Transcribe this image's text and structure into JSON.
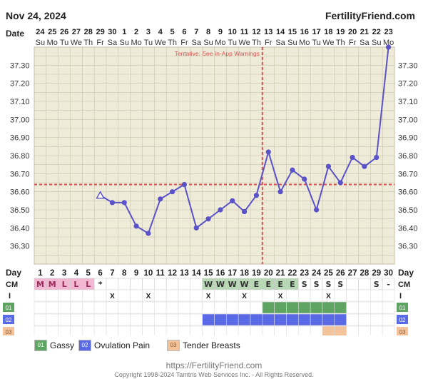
{
  "header": {
    "date": "Nov 24, 2024",
    "site": "FertilityFriend.com"
  },
  "labels": {
    "date": "Date",
    "day": "Day",
    "cm": "CM",
    "intercourse": "I"
  },
  "warning": "Tentative: See In-App Warnings",
  "colors": {
    "grid_bg": "#efebd9",
    "line": "#5a52c8",
    "coverline": "#d9534f",
    "gassy": "#5fa463",
    "ovulation_pain": "#5a6ae6",
    "tender_breasts": "#f3c49b",
    "menstrual": "#f2b7d2"
  },
  "chart_data": {
    "type": "line",
    "dates": [
      "24",
      "25",
      "26",
      "27",
      "28",
      "29",
      "30",
      "1",
      "2",
      "3",
      "4",
      "5",
      "6",
      "7",
      "8",
      "9",
      "10",
      "11",
      "12",
      "13",
      "14",
      "15",
      "16",
      "17",
      "18",
      "19",
      "20",
      "21",
      "22",
      "23"
    ],
    "weekdays": [
      "Su",
      "Mo",
      "Tu",
      "We",
      "Th",
      "Fr",
      "Sa",
      "Su",
      "Mo",
      "Tu",
      "We",
      "Th",
      "Fr",
      "Sa",
      "Su",
      "Mo",
      "Tu",
      "We",
      "Th",
      "Fr",
      "Sa",
      "Su",
      "Mo",
      "Tu",
      "We",
      "Th",
      "Fr",
      "Sa",
      "Su",
      "Mo"
    ],
    "cycle_days": [
      1,
      2,
      3,
      4,
      5,
      6,
      7,
      8,
      9,
      10,
      11,
      12,
      13,
      14,
      15,
      16,
      17,
      18,
      19,
      20,
      21,
      22,
      23,
      24,
      25,
      26,
      27,
      28,
      29,
      30
    ],
    "temperatures": [
      null,
      null,
      null,
      null,
      null,
      36.58,
      36.54,
      36.54,
      36.41,
      36.37,
      36.56,
      36.6,
      36.64,
      36.4,
      36.45,
      36.5,
      36.55,
      36.49,
      36.58,
      36.82,
      36.6,
      36.72,
      36.67,
      36.5,
      36.74,
      36.65,
      36.79,
      36.74,
      36.79,
      37.4
    ],
    "ylim": [
      36.2,
      37.4
    ],
    "yticks": [
      "37.30",
      "37.20",
      "37.10",
      "37.00",
      "36.90",
      "36.80",
      "36.70",
      "36.60",
      "36.50",
      "36.40",
      "36.30"
    ],
    "coverline": 36.64,
    "ovulation_day": 19,
    "first_marker_day": 6,
    "cervical_mucus": [
      "M",
      "M",
      "L",
      "L",
      "L",
      "*",
      "",
      "",
      "",
      "",
      "",
      "",
      "",
      "",
      "W",
      "W",
      "W",
      "W",
      "E",
      "E",
      "E",
      "E",
      "S",
      "S",
      "S",
      "S",
      "",
      "",
      "S",
      "-"
    ],
    "intercourse": [
      "",
      "",
      "",
      "",
      "",
      "",
      "X",
      "",
      "",
      "X",
      "",
      "",
      "",
      "",
      "X",
      "",
      "",
      "X",
      "",
      "",
      "X",
      "",
      "",
      "",
      "X",
      "",
      "",
      "",
      "",
      ""
    ],
    "symptoms": [
      {
        "code": "01",
        "name": "Gassy",
        "start_day": 20,
        "end_day": 26
      },
      {
        "code": "02",
        "name": "Ovulation Pain",
        "start_day": 15,
        "end_day": 26
      },
      {
        "code": "03",
        "name": "Tender Breasts",
        "start_day": 25,
        "end_day": 26
      }
    ]
  },
  "footer": {
    "url": "https://FertilityFriend.com",
    "copyright": "Copyright 1998-2024 Tamtris Web Services Inc. - All Rights Reserved."
  }
}
